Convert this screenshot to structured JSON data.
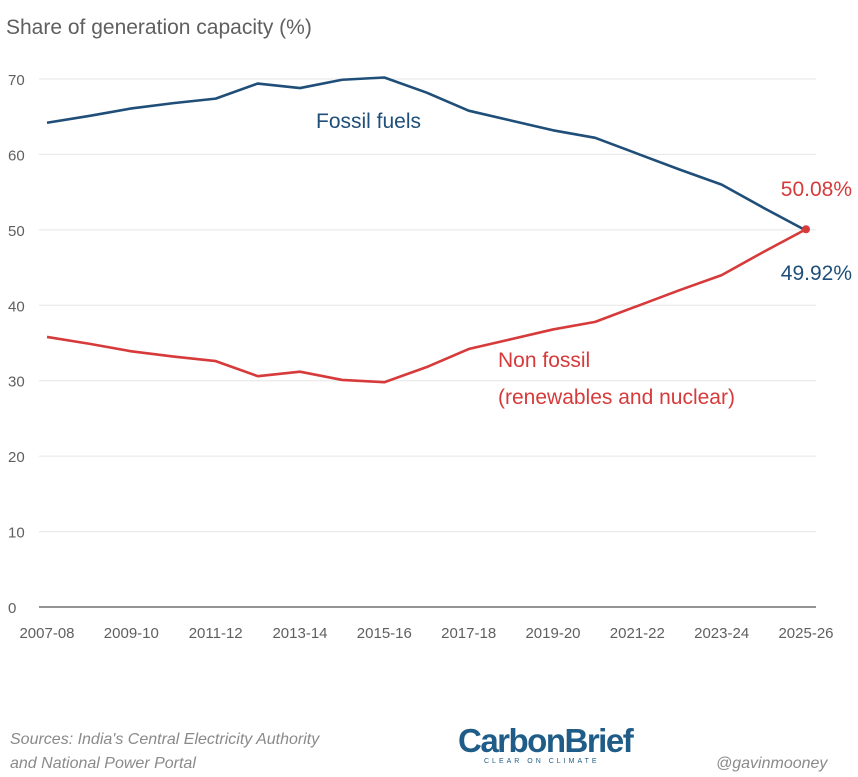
{
  "chart_data": {
    "type": "line",
    "ylabel": "Share of generation capacity (%)",
    "ylim": [
      0,
      70
    ],
    "yticks": [
      0,
      10,
      20,
      30,
      40,
      50,
      60,
      70
    ],
    "categories": [
      "2007-08",
      "2008-09",
      "2009-10",
      "2010-11",
      "2011-12",
      "2012-13",
      "2013-14",
      "2014-15",
      "2015-16",
      "2016-17",
      "2017-18",
      "2018-19",
      "2019-20",
      "2020-21",
      "2021-22",
      "2022-23",
      "2023-24",
      "2024-25",
      "2025-26"
    ],
    "xtick_labels": [
      "2007-08",
      "2009-10",
      "2011-12",
      "2013-14",
      "2015-16",
      "2017-18",
      "2019-20",
      "2021-22",
      "2023-24",
      "2025-26"
    ],
    "grid": true,
    "series": [
      {
        "name": "Fossil fuels",
        "color": "#1f4e79",
        "values": [
          64.2,
          65.1,
          66.1,
          66.8,
          67.4,
          69.4,
          68.8,
          69.9,
          70.2,
          68.2,
          65.8,
          64.5,
          63.2,
          62.2,
          60.1,
          58.0,
          56.0,
          52.9,
          49.92
        ]
      },
      {
        "name": "Non fossil (renewables and nuclear)",
        "color": "#d63a3a",
        "values": [
          35.8,
          34.9,
          33.9,
          33.2,
          32.6,
          30.6,
          31.2,
          30.1,
          29.8,
          31.8,
          34.2,
          35.5,
          36.8,
          37.8,
          39.9,
          42.0,
          44.0,
          47.1,
          50.08
        ]
      }
    ],
    "labels": {
      "fossil": "Fossil fuels",
      "nonfossil_line1": "Non fossil",
      "nonfossil_line2": "(renewables and nuclear)",
      "end_nonfossil": "50.08%",
      "end_fossil": "49.92%"
    }
  },
  "footer": {
    "source_line1": "Sources: India's Central Electricity Authority",
    "source_line2": "and National Power Portal",
    "logo_text": "CarbonBrief",
    "logo_tagline": "CLEAR ON CLIMATE",
    "handle": "@gavinmooney"
  }
}
